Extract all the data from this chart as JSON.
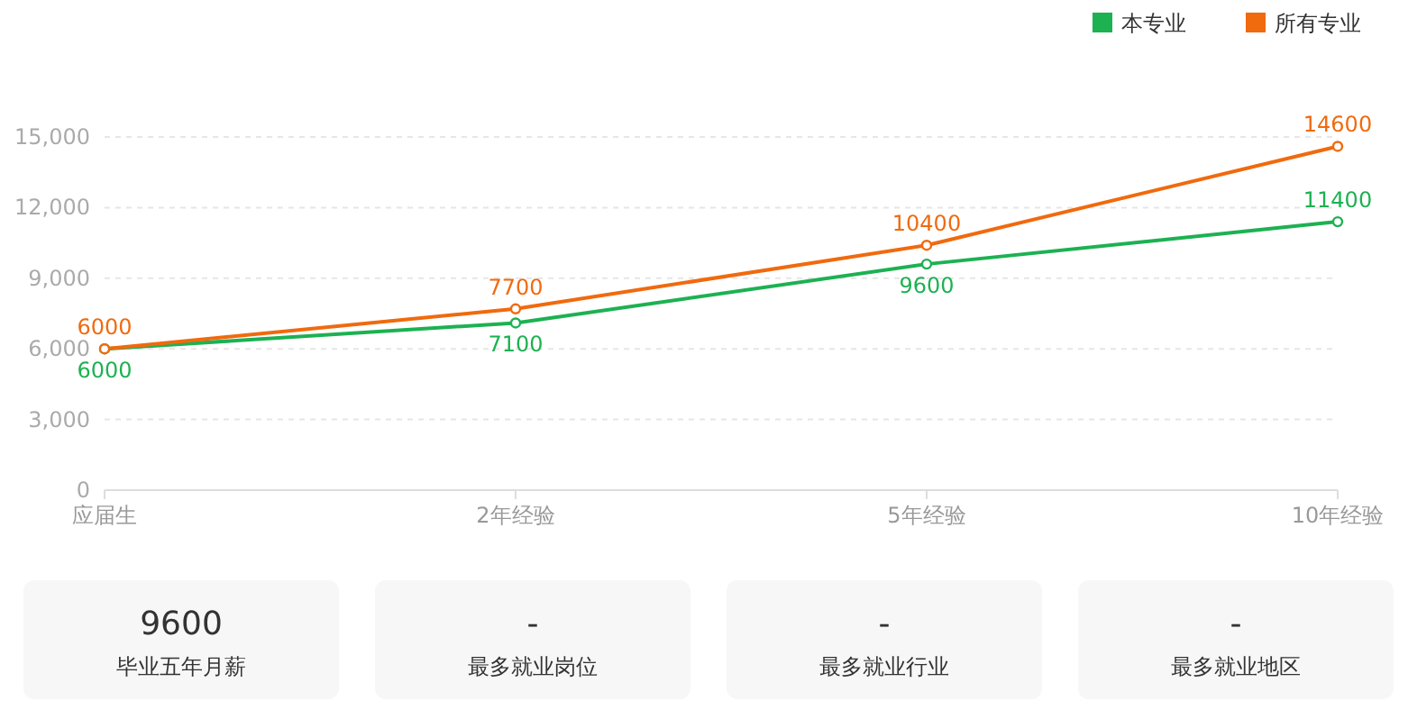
{
  "chart_data": [
    {
      "type": "line",
      "categories": [
        "应届生",
        "2年经验",
        "5年经验",
        "10年经验"
      ],
      "series": [
        {
          "name": "本专业",
          "color": "#1db152",
          "values": [
            6000,
            7100,
            9600,
            11400
          ]
        },
        {
          "name": "所有专业",
          "color": "#f06a0e",
          "values": [
            6000,
            7700,
            10400,
            14600
          ]
        }
      ],
      "ylim": [
        0,
        15000
      ],
      "yticks": [
        0,
        {
          "value": 3000,
          "label": "3,000"
        },
        {
          "value": 6000,
          "label": "6,000"
        },
        {
          "value": 9000,
          "label": "9,000"
        },
        {
          "value": 12000,
          "label": "12,000"
        },
        {
          "value": 15000,
          "label": "15,000"
        }
      ],
      "grid": "y",
      "legend": "top right",
      "marker": "circle",
      "line_style": "solid",
      "data_labels": true
    },
    {
      "type": "other",
      "categories": [
        "毕业五年月薪",
        "最多就业岗位",
        "最多就业行业",
        "最多就业地区"
      ],
      "value_labels": [
        "9600",
        "-",
        "-",
        "-"
      ]
    }
  ]
}
